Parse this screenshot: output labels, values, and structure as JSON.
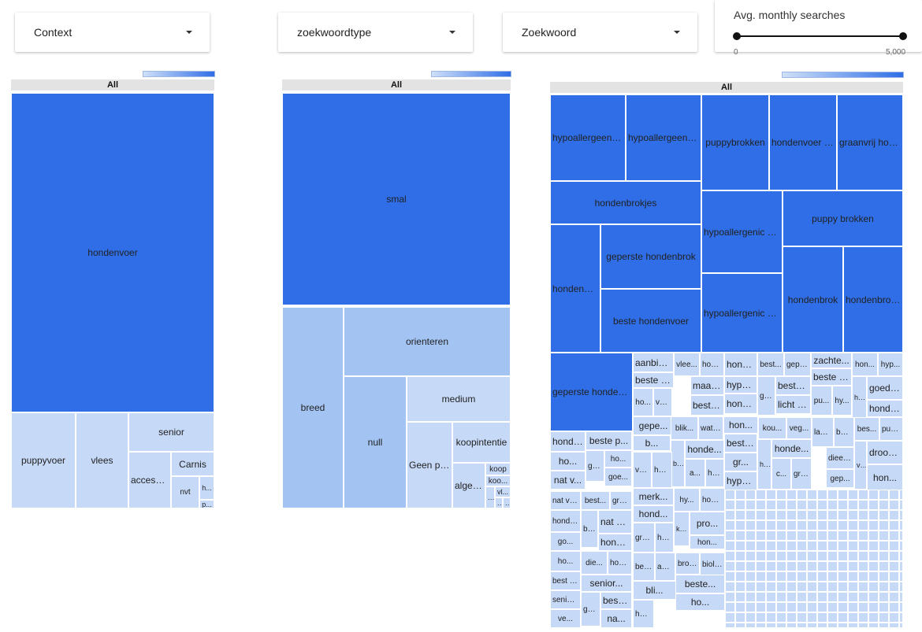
{
  "filters": {
    "context": {
      "label": "Context"
    },
    "type": {
      "label": "zoekwoordtype"
    },
    "keyword": {
      "label": "Zoekwoord"
    },
    "slider": {
      "label": "Avg. monthly searches",
      "min": "0",
      "max": "5,000",
      "min_value": 0,
      "max_value": 5000
    }
  },
  "colors": {
    "dark": "#2f6ee6",
    "mid": "#a3c4f3",
    "light": "#c6d9f7",
    "header": "#e3e3e3"
  },
  "treemap1": {
    "header": "All",
    "cells": [
      {
        "label": "hondenvoer",
        "level": "dark"
      },
      {
        "label": "puppyvoer",
        "level": "light"
      },
      {
        "label": "vlees",
        "level": "light"
      },
      {
        "label": "senior",
        "level": "light"
      },
      {
        "label": "accesoir...",
        "level": "light"
      },
      {
        "label": "Carnis",
        "level": "light"
      },
      {
        "label": "nvt",
        "level": "light"
      },
      {
        "label": "h...",
        "level": "light"
      },
      {
        "label": "p...",
        "level": "light"
      }
    ]
  },
  "treemap2": {
    "header": "All",
    "cells": [
      {
        "label": "smal",
        "level": "dark"
      },
      {
        "label": "breed",
        "level": "mid"
      },
      {
        "label": "orienteren",
        "level": "mid"
      },
      {
        "label": "null",
        "level": "mid"
      },
      {
        "label": "medium",
        "level": "light"
      },
      {
        "label": "Geen pro...",
        "level": "light"
      },
      {
        "label": "koopintentie",
        "level": "light"
      },
      {
        "label": "algem...",
        "level": "light"
      },
      {
        "label": "koop",
        "level": "light"
      },
      {
        "label": "koo...",
        "level": "light"
      },
      {
        "label": "vl...",
        "level": "light"
      },
      {
        "label": "...",
        "level": "light"
      },
      {
        "label": "...",
        "level": "light"
      },
      {
        "label": "...",
        "level": "light"
      }
    ]
  },
  "treemap3": {
    "header": "All",
    "cells": [
      {
        "label": "hypoallergeen h...",
        "level": "dark"
      },
      {
        "label": "hypoallergeen h...",
        "level": "dark"
      },
      {
        "label": "puppybrokken",
        "level": "dark"
      },
      {
        "label": "hondenvoer m...",
        "level": "dark"
      },
      {
        "label": "graanvrij hond...",
        "level": "dark"
      },
      {
        "label": "hondenbrokjes",
        "level": "dark"
      },
      {
        "label": "hypoallergenic ho...",
        "level": "dark"
      },
      {
        "label": "puppy brokken",
        "level": "dark"
      },
      {
        "label": "hondenvoer",
        "level": "dark"
      },
      {
        "label": "geperste hondenbrok",
        "level": "dark"
      },
      {
        "label": "hypoallergenic ho...",
        "level": "dark"
      },
      {
        "label": "hondenbrok",
        "level": "dark"
      },
      {
        "label": "hondenbrok...",
        "level": "dark"
      },
      {
        "label": "beste hondenvoer",
        "level": "dark"
      },
      {
        "label": "geperste hondenb...",
        "level": "dark"
      },
      {
        "label": "aanbied...",
        "level": "light"
      },
      {
        "label": "vlee...",
        "level": "light"
      },
      {
        "label": "hon...",
        "level": "light"
      },
      {
        "label": "honde...",
        "level": "light"
      },
      {
        "label": "best...",
        "level": "light"
      },
      {
        "label": "gepe...",
        "level": "light"
      },
      {
        "label": "zachte...",
        "level": "light"
      },
      {
        "label": "hon...",
        "level": "light"
      },
      {
        "label": "hyp...",
        "level": "light"
      },
      {
        "label": "beste v...",
        "level": "light"
      },
      {
        "label": "beste h...",
        "level": "light"
      },
      {
        "label": "maatb...",
        "level": "light"
      },
      {
        "label": "hypoa...",
        "level": "light"
      },
      {
        "label": "beste...",
        "level": "light"
      },
      {
        "label": "goedk...",
        "level": "light"
      },
      {
        "label": "ho...",
        "level": "light"
      },
      {
        "label": "vo...",
        "level": "light"
      },
      {
        "label": "beste...",
        "level": "light"
      },
      {
        "label": "honde...",
        "level": "light"
      },
      {
        "label": "go...",
        "level": "light"
      },
      {
        "label": "licht v...",
        "level": "light"
      },
      {
        "label": "pu...",
        "level": "light"
      },
      {
        "label": "hy...",
        "level": "light"
      },
      {
        "label": "honde...",
        "level": "light"
      },
      {
        "label": "honde...",
        "level": "light"
      },
      {
        "label": "gepe...",
        "level": "light"
      },
      {
        "label": "blik...",
        "level": "light"
      },
      {
        "label": "wat is...",
        "level": "light"
      },
      {
        "label": "hon...",
        "level": "light"
      },
      {
        "label": "kou...",
        "level": "light"
      },
      {
        "label": "veg...",
        "level": "light"
      },
      {
        "label": "lam...",
        "level": "light"
      },
      {
        "label": "best...",
        "level": "light"
      },
      {
        "label": "bes...",
        "level": "light"
      },
      {
        "label": "puppy...",
        "level": "light"
      },
      {
        "label": "hondenvo...",
        "level": "light"
      },
      {
        "label": "beste p...",
        "level": "light"
      },
      {
        "label": "b...",
        "level": "light"
      },
      {
        "label": "beste h...",
        "level": "light"
      },
      {
        "label": "honde...",
        "level": "light"
      },
      {
        "label": "beste h...",
        "level": "light"
      },
      {
        "label": "honde...",
        "level": "light"
      },
      {
        "label": "gr...",
        "level": "light"
      },
      {
        "label": "glute...",
        "level": "light"
      },
      {
        "label": "ho...",
        "level": "light"
      },
      {
        "label": "go...",
        "level": "light"
      },
      {
        "label": "ho...",
        "level": "light"
      },
      {
        "label": "ver...",
        "level": "light"
      },
      {
        "label": "honde...",
        "level": "light"
      },
      {
        "label": "a...",
        "level": "light"
      },
      {
        "label": "ho...",
        "level": "light"
      },
      {
        "label": "gr...",
        "level": "light"
      },
      {
        "label": "hond...",
        "level": "light"
      },
      {
        "label": "c...",
        "level": "light"
      },
      {
        "label": "graanv...",
        "level": "light"
      },
      {
        "label": "dieetv...",
        "level": "light"
      },
      {
        "label": "vers h...",
        "level": "light"
      },
      {
        "label": "droogv...",
        "level": "light"
      },
      {
        "label": "nat v...",
        "level": "light"
      },
      {
        "label": "goe...",
        "level": "light"
      },
      {
        "label": "hypoa...",
        "level": "light"
      },
      {
        "label": "gep...",
        "level": "light"
      },
      {
        "label": "hon...",
        "level": "light"
      },
      {
        "label": "nat voer...",
        "level": "light"
      },
      {
        "label": "best...",
        "level": "light"
      },
      {
        "label": "graa...",
        "level": "light"
      },
      {
        "label": "merk...",
        "level": "light"
      },
      {
        "label": "hy...",
        "level": "light"
      },
      {
        "label": "honde...",
        "level": "light"
      },
      {
        "label": "honden...",
        "level": "light"
      },
      {
        "label": "be...",
        "level": "light"
      },
      {
        "label": "nat ho...",
        "level": "light"
      },
      {
        "label": "hond...",
        "level": "light"
      },
      {
        "label": "kvv vo...",
        "level": "light"
      },
      {
        "label": "pro...",
        "level": "light"
      },
      {
        "label": "go...",
        "level": "light"
      },
      {
        "label": "honde...",
        "level": "light"
      },
      {
        "label": "graanv...",
        "level": "light"
      },
      {
        "label": "hon...",
        "level": "light"
      },
      {
        "label": "hon...",
        "level": "light"
      },
      {
        "label": "ho...",
        "level": "light"
      },
      {
        "label": "die...",
        "level": "light"
      },
      {
        "label": "hon...",
        "level": "light"
      },
      {
        "label": "best...",
        "level": "light"
      },
      {
        "label": "analler...",
        "level": "light"
      },
      {
        "label": "brokken h...",
        "level": "light"
      },
      {
        "label": "biologis...",
        "level": "light"
      },
      {
        "label": "best hond...",
        "level": "light"
      },
      {
        "label": "senior...",
        "level": "light"
      },
      {
        "label": "bli...",
        "level": "light"
      },
      {
        "label": "beste...",
        "level": "light"
      },
      {
        "label": "senior...",
        "level": "light"
      },
      {
        "label": "goed...",
        "level": "light"
      },
      {
        "label": "beste...",
        "level": "light"
      },
      {
        "label": "ho...",
        "level": "light"
      },
      {
        "label": "ve...",
        "level": "light"
      },
      {
        "label": "na...",
        "level": "light"
      },
      {
        "label": "honde...",
        "level": "light"
      }
    ]
  }
}
